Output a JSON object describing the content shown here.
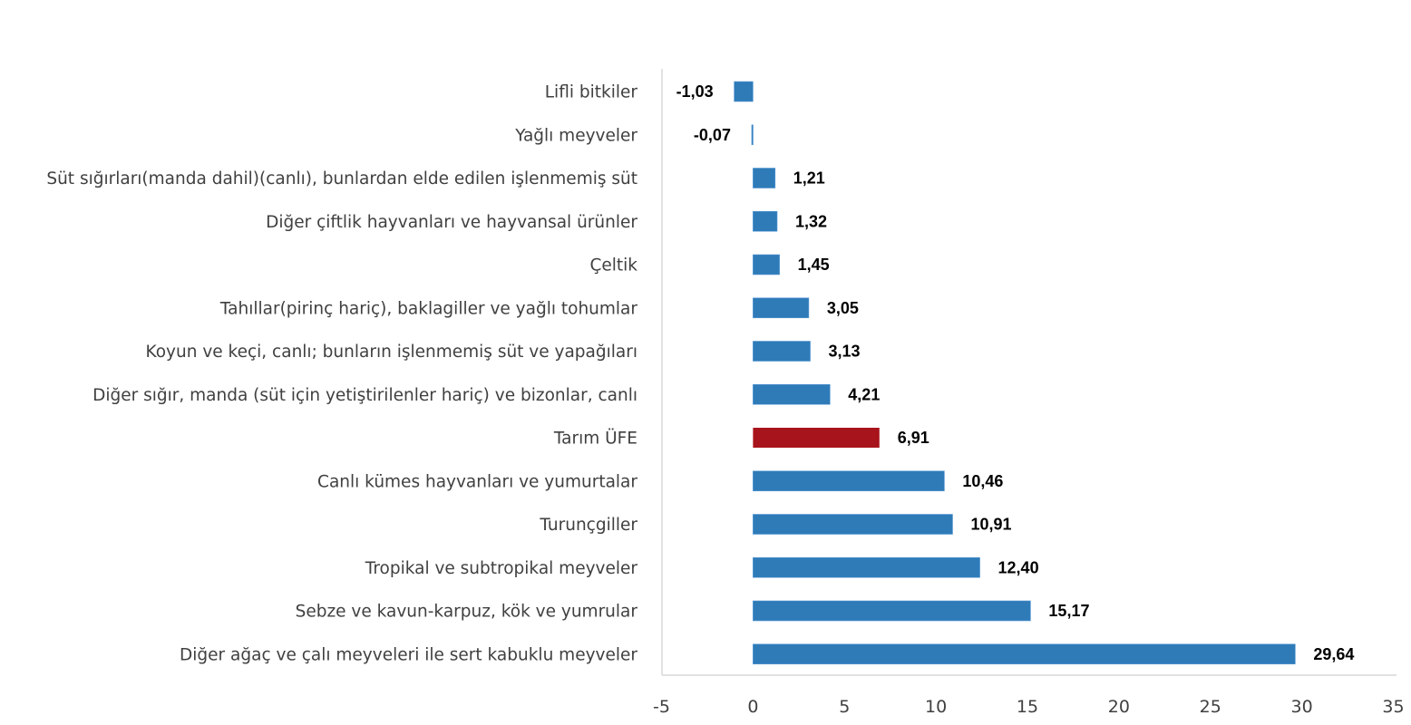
{
  "chart_data": {
    "type": "bar",
    "orientation": "horizontal",
    "categories": [
      "Lifli bitkiler",
      "Yağlı meyveler",
      "Süt sığırları(manda dahil)(canlı), bunlardan elde edilen işlenmemiş süt",
      "Diğer çiftlik hayvanları ve hayvansal ürünler",
      "Çeltik",
      "Tahıllar(pirinç hariç), baklagiller ve yağlı tohumlar",
      "Koyun ve keçi, canlı; bunların işlenmemiş süt ve yapağıları",
      "Diğer sığır, manda (süt için yetiştirilenler hariç) ve bizonlar, canlı",
      "Tarım ÜFE",
      "Canlı kümes hayvanları ve yumurtalar",
      "Turunçgiller",
      "Tropikal ve subtropikal meyveler",
      "Sebze ve kavun-karpuz, kök ve yumrular",
      "Diğer ağaç ve çalı meyveleri ile sert kabuklu meyveler"
    ],
    "values": [
      -1.03,
      -0.07,
      1.21,
      1.32,
      1.45,
      3.05,
      3.13,
      4.21,
      6.91,
      10.46,
      10.91,
      12.4,
      15.17,
      29.64
    ],
    "value_labels": [
      "-1,03",
      "-0,07",
      "1,21",
      "1,32",
      "1,45",
      "3,05",
      "3,13",
      "4,21",
      "6,91",
      "10,46",
      "10,91",
      "12,40",
      "15,17",
      "29,64"
    ],
    "highlight_index": 8,
    "colors": {
      "default": "#2e7bb8",
      "highlight": "#a8141b"
    },
    "xlim": [
      -5,
      35
    ],
    "xticks": [
      -5,
      0,
      5,
      10,
      15,
      20,
      25,
      30,
      35
    ],
    "title": "",
    "xlabel": "",
    "ylabel": "",
    "grid": false
  }
}
